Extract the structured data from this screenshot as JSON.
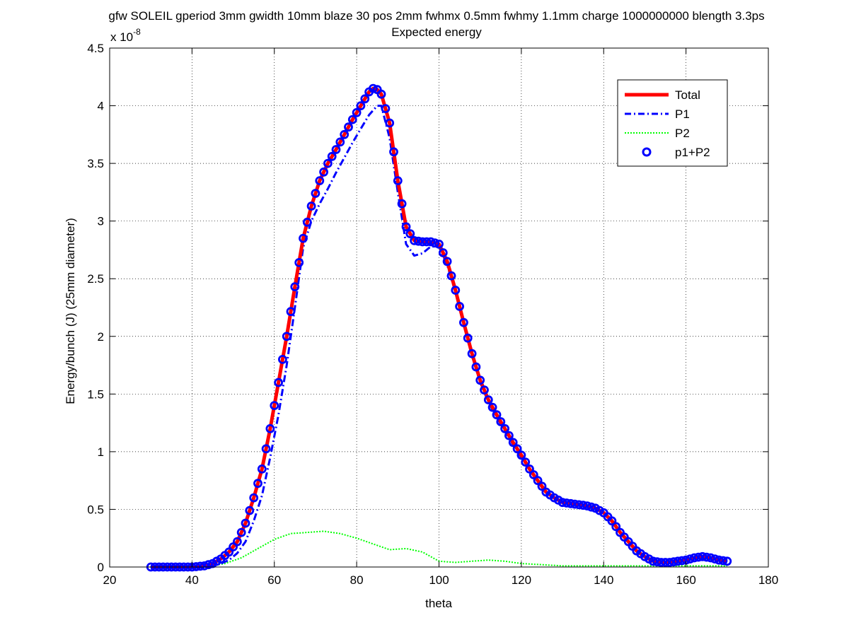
{
  "chart_data": {
    "type": "line",
    "title": "gfw SOLEIL gperiod 3mm gwidth 10mm blaze 30 pos 2mm fwhmx 0.5mm fwhmy 1.1mm charge 1000000000 blength 3.3ps",
    "subtitle": "Expected energy",
    "xlabel": "theta",
    "ylabel": "Energy/bunch (J) (25mm diameter)",
    "exponent_label": "x 10",
    "exponent_power": "-8",
    "xlim": [
      20,
      180
    ],
    "ylim": [
      0,
      4.5
    ],
    "y_scale": 1e-08,
    "grid": true,
    "legend_position": "top-right",
    "x_ticks": [
      "20",
      "40",
      "60",
      "80",
      "100",
      "120",
      "140",
      "160",
      "180"
    ],
    "y_ticks": [
      "0",
      "0.5",
      "1",
      "1.5",
      "2",
      "2.5",
      "3",
      "3.5",
      "4",
      "4.5"
    ],
    "series": [
      {
        "name": "Total",
        "color": "#ff0000",
        "style": "solid",
        "x": [
          30,
          35,
          40,
          43,
          45,
          47,
          49,
          51,
          53,
          55,
          57,
          59,
          61,
          63,
          65,
          67,
          69,
          71,
          73,
          75,
          77,
          79,
          81,
          83,
          84,
          85,
          86,
          88,
          90,
          92,
          94,
          96,
          98,
          100,
          102,
          104,
          106,
          108,
          110,
          112,
          114,
          116,
          118,
          120,
          122,
          124,
          126,
          128,
          130,
          132,
          134,
          136,
          138,
          140,
          142,
          144,
          146,
          148,
          150,
          152,
          154,
          156,
          158,
          160,
          162,
          164,
          166,
          168,
          170
        ],
        "values": [
          0,
          0,
          0,
          0.01,
          0.03,
          0.07,
          0.13,
          0.22,
          0.38,
          0.6,
          0.85,
          1.2,
          1.6,
          2.0,
          2.43,
          2.85,
          3.13,
          3.35,
          3.5,
          3.62,
          3.75,
          3.88,
          4.0,
          4.12,
          4.15,
          4.14,
          4.1,
          3.85,
          3.35,
          2.95,
          2.83,
          2.82,
          2.82,
          2.8,
          2.65,
          2.4,
          2.12,
          1.85,
          1.62,
          1.45,
          1.32,
          1.2,
          1.08,
          0.97,
          0.85,
          0.75,
          0.65,
          0.6,
          0.56,
          0.55,
          0.54,
          0.53,
          0.51,
          0.47,
          0.4,
          0.3,
          0.22,
          0.14,
          0.09,
          0.05,
          0.04,
          0.04,
          0.05,
          0.06,
          0.08,
          0.09,
          0.08,
          0.06,
          0.05
        ]
      },
      {
        "name": "P1",
        "color": "#0000ff",
        "style": "dash-dot",
        "x": [
          30,
          35,
          40,
          45,
          47,
          49,
          51,
          53,
          55,
          57,
          59,
          61,
          63,
          65,
          67,
          69,
          71,
          73,
          75,
          77,
          79,
          81,
          83,
          85,
          86,
          88,
          90,
          92,
          94,
          96,
          98,
          100,
          102,
          104,
          106,
          108,
          110,
          112,
          114,
          116,
          118,
          120,
          122,
          124,
          126,
          128,
          130,
          132,
          134,
          136,
          138,
          140,
          142,
          144,
          146,
          148,
          150,
          152,
          154,
          156,
          158,
          160,
          162,
          164,
          166,
          168,
          170
        ],
        "values": [
          0,
          0,
          0,
          0.01,
          0.03,
          0.06,
          0.12,
          0.22,
          0.4,
          0.62,
          0.95,
          1.32,
          1.75,
          2.25,
          2.77,
          3.0,
          3.15,
          3.28,
          3.42,
          3.55,
          3.68,
          3.8,
          3.92,
          4.0,
          4.0,
          3.72,
          3.25,
          2.8,
          2.7,
          2.72,
          2.78,
          2.78,
          2.62,
          2.38,
          2.1,
          1.83,
          1.6,
          1.43,
          1.3,
          1.18,
          1.06,
          0.95,
          0.84,
          0.74,
          0.65,
          0.6,
          0.56,
          0.55,
          0.54,
          0.53,
          0.51,
          0.47,
          0.4,
          0.3,
          0.22,
          0.14,
          0.09,
          0.05,
          0.04,
          0.04,
          0.05,
          0.06,
          0.08,
          0.09,
          0.08,
          0.06,
          0.05
        ]
      },
      {
        "name": "P2",
        "color": "#00ff00",
        "style": "dotted",
        "x": [
          30,
          40,
          45,
          48,
          52,
          56,
          60,
          64,
          68,
          72,
          76,
          80,
          84,
          88,
          92,
          96,
          100,
          104,
          108,
          112,
          116,
          120,
          125,
          130,
          140,
          150,
          160,
          170
        ],
        "values": [
          0,
          0,
          0.01,
          0.03,
          0.08,
          0.16,
          0.24,
          0.29,
          0.3,
          0.31,
          0.29,
          0.25,
          0.2,
          0.15,
          0.16,
          0.13,
          0.05,
          0.04,
          0.05,
          0.06,
          0.05,
          0.03,
          0.02,
          0.01,
          0.01,
          0.01,
          0.01,
          0.01
        ]
      },
      {
        "name": "p1+P2",
        "color": "#0000ff",
        "style": "markers",
        "x_start": 30,
        "x_end": 170,
        "x_step": 1
      }
    ]
  }
}
